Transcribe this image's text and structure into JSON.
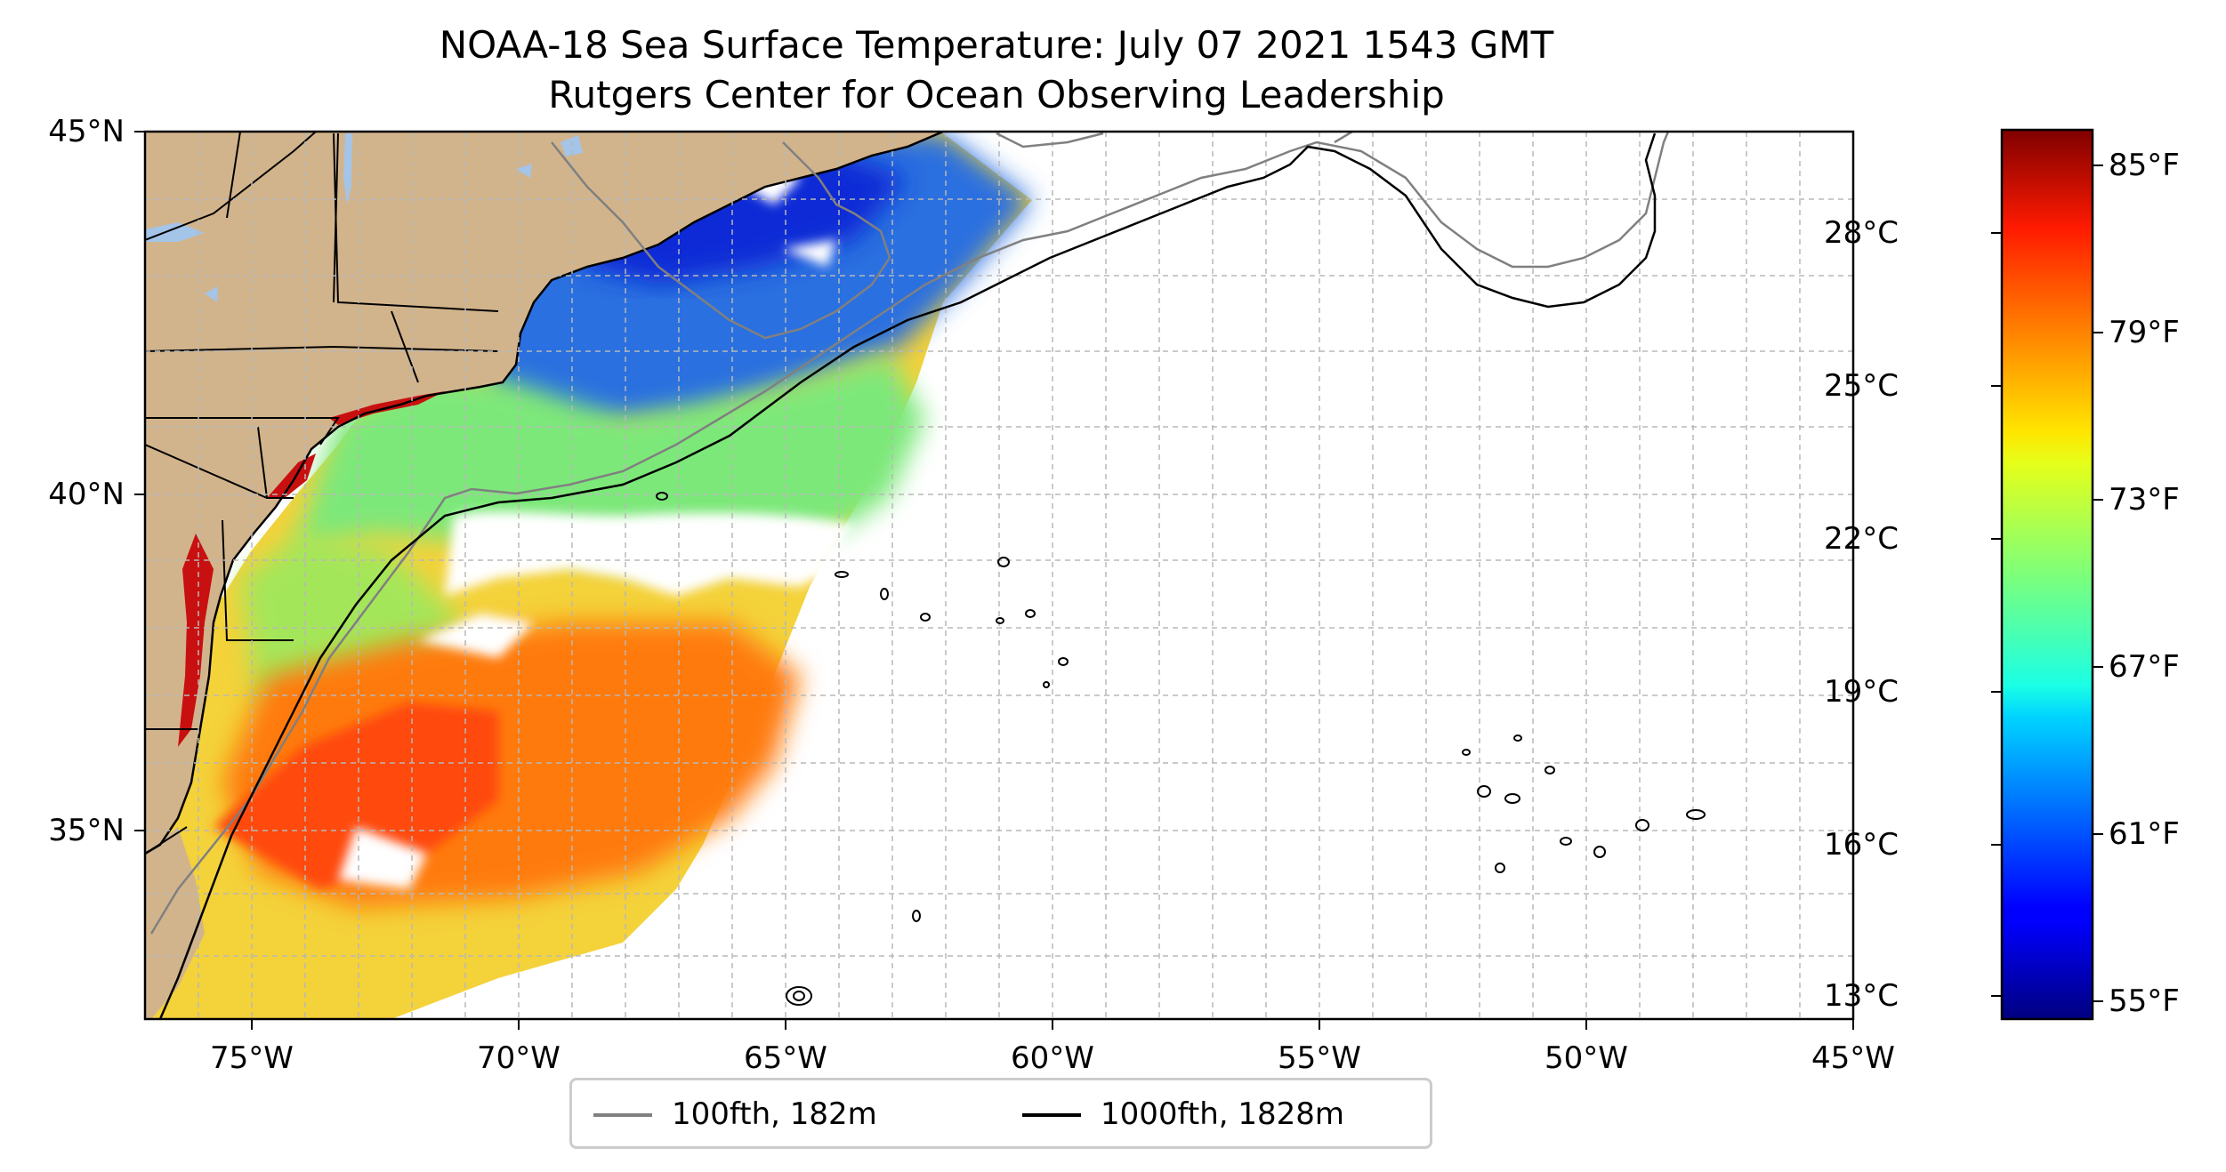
{
  "title": "NOAA-18 Sea Surface Temperature: July 07 2021 1543 GMT",
  "subtitle": "Rutgers Center for Ocean Observing Leadership",
  "axes": {
    "lat_labels": [
      "45°N",
      "40°N",
      "35°N"
    ],
    "lon_labels": [
      "75°W",
      "70°W",
      "65°W",
      "60°W",
      "55°W",
      "50°W",
      "45°W"
    ],
    "extent": {
      "lon_min": -77,
      "lon_max": -45,
      "lat_min": 31.7,
      "lat_max": 45
    },
    "grid": true
  },
  "colorbar": {
    "celsius_labels": [
      "28°C",
      "25°C",
      "22°C",
      "19°C",
      "16°C",
      "13°C"
    ],
    "fahrenheit_labels": [
      "85°F",
      "79°F",
      "73°F",
      "67°F",
      "61°F",
      "55°F"
    ],
    "colormap": "jet",
    "range_f": [
      54.5,
      86.2
    ]
  },
  "legend": {
    "items": [
      {
        "label": "100fth, 182m",
        "color": "#808080"
      },
      {
        "label": "1000fth, 1828m",
        "color": "#000000"
      }
    ],
    "placement": "bottom-center"
  },
  "colors": {
    "land": "#d2b48c",
    "lakes": "#a4c4e8",
    "contour_100fth": "#808080",
    "contour_1000fth": "#000000"
  }
}
